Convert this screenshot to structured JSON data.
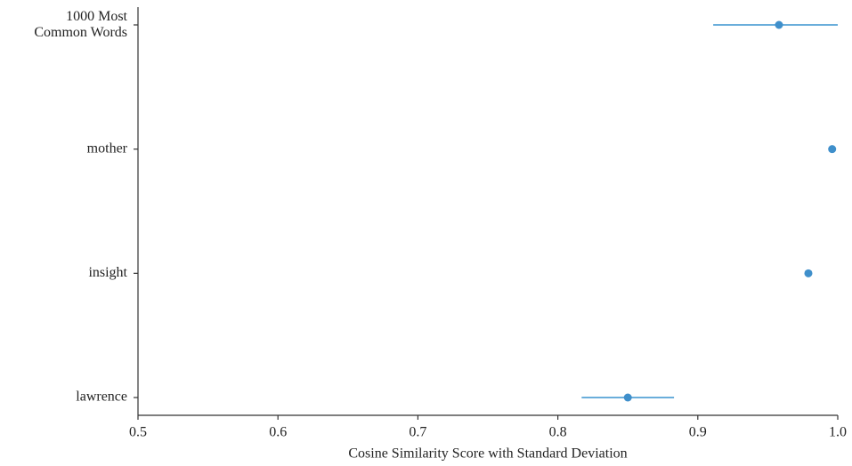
{
  "chart_data": {
    "type": "errorbar",
    "categories": [
      "1000 Most\nCommon Words",
      "mother",
      "insight",
      "lawrence"
    ],
    "values": [
      0.958,
      0.996,
      0.979,
      0.85
    ],
    "errors": [
      0.047,
      0,
      0.002,
      0.033
    ],
    "color": "#3f8fcb",
    "error_color": "#6aaedb",
    "xlabel": "Cosine Similarity Score with Standard Deviation",
    "xlim": [
      0.5,
      1.0
    ],
    "xticks": [
      0.5,
      0.6,
      0.7,
      0.8,
      0.9,
      {
        "value": 1.0,
        "label": "1.0"
      }
    ],
    "grid": false
  }
}
